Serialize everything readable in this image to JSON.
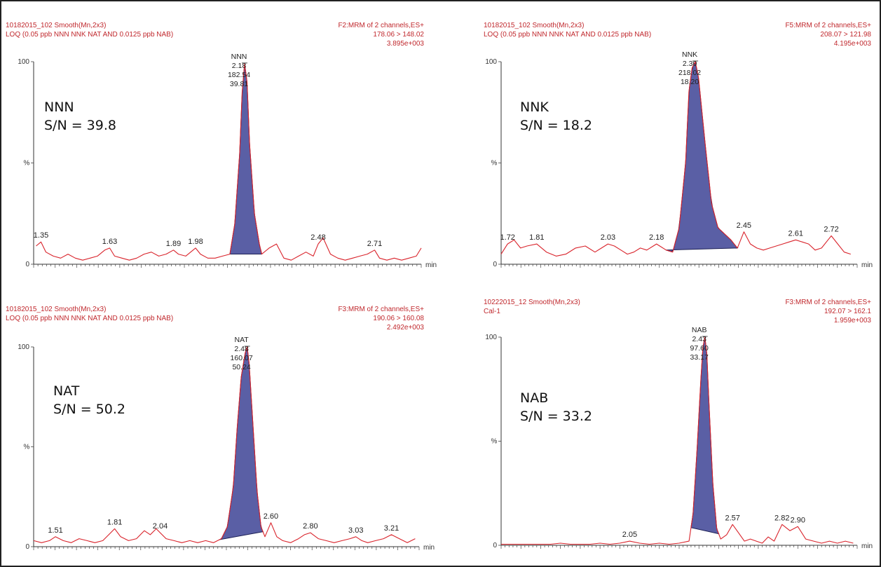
{
  "colors": {
    "trace": "#d9232b",
    "peak_fill": "#5a5fa5",
    "peak_stroke": "#1c1f55",
    "header": "#c0282d"
  },
  "chart_data": [
    {
      "type": "line",
      "header_left": [
        "10182015_102 Smooth(Mn,2x3)",
        "LOQ (0.05 ppb NNN NNK NAT AND 0.0125 ppb NAB)"
      ],
      "header_right": [
        "F2:MRM of 2 channels,ES+",
        "178.06 > 148.02",
        "3.895e+003"
      ],
      "ylabel": "%",
      "y_top": "100",
      "y_bottom": "0",
      "xlabel": "min",
      "xlim": [
        1.32,
        2.9
      ],
      "ylim": [
        0,
        100
      ],
      "annotation": [
        "NNN",
        "S/N = 39.8"
      ],
      "peak": {
        "rt": 2.18,
        "labels": [
          "NNN",
          "2.18",
          "182.54",
          "39.81"
        ],
        "start": 2.12,
        "end": 2.25
      },
      "noise_labels": [
        "1.35",
        "1.63",
        "1.89",
        "1.98",
        "2.48",
        "2.71"
      ],
      "series": [
        {
          "x": [
            1.33,
            1.35,
            1.37,
            1.4,
            1.43,
            1.46,
            1.49,
            1.52,
            1.55,
            1.58,
            1.61,
            1.63,
            1.65,
            1.68,
            1.71,
            1.74,
            1.77,
            1.8,
            1.83,
            1.86,
            1.89,
            1.91,
            1.94,
            1.96,
            1.98,
            2.0,
            2.03,
            2.06,
            2.09,
            2.12,
            2.14,
            2.16,
            2.17,
            2.18,
            2.19,
            2.2,
            2.22,
            2.24,
            2.25,
            2.28,
            2.31,
            2.34,
            2.37,
            2.4,
            2.43,
            2.46,
            2.48,
            2.5,
            2.53,
            2.56,
            2.59,
            2.62,
            2.65,
            2.68,
            2.71,
            2.73,
            2.76,
            2.79,
            2.82,
            2.85,
            2.88,
            2.9
          ],
          "y": [
            9,
            11,
            6,
            4,
            3,
            5,
            3,
            2,
            3,
            4,
            7,
            8,
            4,
            3,
            2,
            3,
            5,
            6,
            4,
            5,
            7,
            5,
            4,
            6,
            8,
            5,
            3,
            3,
            4,
            5,
            20,
            55,
            85,
            99,
            90,
            60,
            25,
            10,
            5,
            8,
            10,
            3,
            2,
            4,
            6,
            4,
            10,
            13,
            5,
            3,
            2,
            3,
            4,
            5,
            7,
            3,
            2,
            3,
            2,
            3,
            4,
            8
          ]
        }
      ]
    },
    {
      "type": "line",
      "header_left": [
        "10182015_102 Smooth(Mn,2x3)",
        "LOQ (0.05 ppb NNN NNK NAT AND 0.0125 ppb NAB)"
      ],
      "header_right": [
        "F5:MRM of 2 channels,ES+",
        "208.07 > 121.98",
        "4.195e+003"
      ],
      "ylabel": "%",
      "y_top": "100",
      "y_bottom": "0",
      "xlabel": "min",
      "xlim": [
        1.7,
        2.8
      ],
      "ylim": [
        0,
        100
      ],
      "annotation": [
        "NNK",
        "S/N = 18.2"
      ],
      "peak": {
        "rt": 2.3,
        "labels": [
          "NNK",
          "2.30",
          "218.02",
          "18.20"
        ],
        "start": 2.21,
        "end": 2.43
      },
      "noise_labels": [
        "1.72",
        "1.81",
        "2.03",
        "2.18",
        "2.45",
        "2.61",
        "2.72"
      ],
      "series": [
        {
          "x": [
            1.7,
            1.72,
            1.74,
            1.76,
            1.78,
            1.81,
            1.84,
            1.87,
            1.9,
            1.93,
            1.96,
            1.99,
            2.01,
            2.03,
            2.05,
            2.07,
            2.09,
            2.11,
            2.13,
            2.15,
            2.17,
            2.18,
            2.19,
            2.21,
            2.23,
            2.25,
            2.27,
            2.28,
            2.29,
            2.3,
            2.31,
            2.33,
            2.35,
            2.37,
            2.39,
            2.41,
            2.43,
            2.45,
            2.47,
            2.49,
            2.51,
            2.53,
            2.55,
            2.57,
            2.59,
            2.61,
            2.63,
            2.65,
            2.67,
            2.69,
            2.71,
            2.72,
            2.74,
            2.76,
            2.78
          ],
          "y": [
            5,
            10,
            12,
            8,
            9,
            10,
            6,
            4,
            5,
            8,
            9,
            6,
            8,
            10,
            9,
            7,
            5,
            6,
            8,
            7,
            9,
            10,
            9,
            7,
            6,
            18,
            50,
            85,
            97,
            100,
            92,
            60,
            30,
            18,
            15,
            12,
            8,
            16,
            10,
            8,
            7,
            8,
            9,
            10,
            11,
            12,
            11,
            10,
            7,
            8,
            12,
            14,
            10,
            6,
            5
          ]
        }
      ]
    },
    {
      "type": "line",
      "header_left": [
        "10182015_102 Smooth(Mn,2x3)",
        "LOQ (0.05 ppb NNN NNK NAT AND 0.0125 ppb NAB)"
      ],
      "header_right": [
        "F3:MRM of 2 channels,ES+",
        "190.06 > 160.08",
        "2.492e+003"
      ],
      "ylabel": "%",
      "y_top": "100",
      "y_bottom": "0",
      "xlabel": "min",
      "xlim": [
        1.4,
        3.35
      ],
      "ylim": [
        0,
        100
      ],
      "annotation": [
        "NAT",
        "S/N = 50.2"
      ],
      "peak": {
        "rt": 2.48,
        "labels": [
          "NAT",
          "2.48",
          "160.07",
          "50.24"
        ],
        "start": 2.34,
        "end": 2.56
      },
      "noise_labels": [
        "1.51",
        "1.81",
        "2.04",
        "2.60",
        "2.80",
        "3.03",
        "3.21"
      ],
      "series": [
        {
          "x": [
            1.4,
            1.44,
            1.48,
            1.51,
            1.55,
            1.59,
            1.63,
            1.67,
            1.71,
            1.75,
            1.78,
            1.81,
            1.84,
            1.88,
            1.92,
            1.96,
            1.99,
            2.02,
            2.04,
            2.07,
            2.11,
            2.15,
            2.19,
            2.23,
            2.27,
            2.31,
            2.35,
            2.38,
            2.41,
            2.43,
            2.45,
            2.47,
            2.48,
            2.49,
            2.51,
            2.53,
            2.55,
            2.57,
            2.6,
            2.63,
            2.66,
            2.7,
            2.74,
            2.77,
            2.8,
            2.84,
            2.88,
            2.92,
            2.96,
            3.0,
            3.03,
            3.06,
            3.09,
            3.13,
            3.17,
            3.21,
            3.25,
            3.29,
            3.33
          ],
          "y": [
            3,
            2,
            3,
            5,
            3,
            2,
            4,
            3,
            2,
            3,
            6,
            9,
            5,
            3,
            4,
            8,
            6,
            9,
            7,
            4,
            3,
            2,
            3,
            2,
            3,
            2,
            4,
            10,
            30,
            60,
            85,
            97,
            100,
            92,
            60,
            28,
            10,
            5,
            12,
            5,
            3,
            2,
            4,
            6,
            7,
            4,
            3,
            2,
            3,
            4,
            5,
            3,
            2,
            3,
            4,
            6,
            4,
            2,
            4
          ]
        }
      ]
    },
    {
      "type": "line",
      "header_left": [
        "10222015_12 Smooth(Mn,2x3)",
        "Cal-1"
      ],
      "header_right": [
        "F3:MRM of 2 channels,ES+",
        "192.07 > 162.1",
        "1.959e+003"
      ],
      "ylabel": "%",
      "y_top": "100",
      "y_bottom": "0",
      "xlabel": "min",
      "xlim": [
        1.4,
        3.2
      ],
      "ylim": [
        0,
        100
      ],
      "annotation": [
        "NAB",
        "S/N = 33.2"
      ],
      "peak": {
        "rt": 2.43,
        "labels": [
          "NAB",
          "2.43",
          "97.60",
          "33.17"
        ],
        "start": 2.36,
        "end": 2.5
      },
      "noise_labels": [
        "2.05",
        "2.57",
        "2.82",
        "2.90"
      ],
      "series": [
        {
          "x": [
            1.4,
            1.45,
            1.5,
            1.55,
            1.6,
            1.65,
            1.7,
            1.75,
            1.8,
            1.85,
            1.9,
            1.95,
            2.0,
            2.05,
            2.1,
            2.15,
            2.2,
            2.25,
            2.3,
            2.35,
            2.37,
            2.39,
            2.41,
            2.42,
            2.43,
            2.44,
            2.45,
            2.47,
            2.49,
            2.51,
            2.54,
            2.57,
            2.6,
            2.63,
            2.66,
            2.69,
            2.72,
            2.75,
            2.78,
            2.82,
            2.86,
            2.9,
            2.94,
            2.98,
            3.02,
            3.06,
            3.1,
            3.14,
            3.18
          ],
          "y": [
            0.5,
            0.5,
            0.5,
            0.5,
            0.5,
            0.5,
            1,
            0.5,
            0.5,
            0.5,
            1,
            0.5,
            1,
            2,
            1,
            0.5,
            1,
            0.5,
            1,
            2,
            15,
            45,
            80,
            95,
            100,
            92,
            70,
            30,
            8,
            3,
            5,
            10,
            6,
            2,
            3,
            2,
            1,
            4,
            2,
            10,
            7,
            9,
            3,
            2,
            1,
            2,
            1,
            2,
            1
          ]
        }
      ]
    }
  ]
}
